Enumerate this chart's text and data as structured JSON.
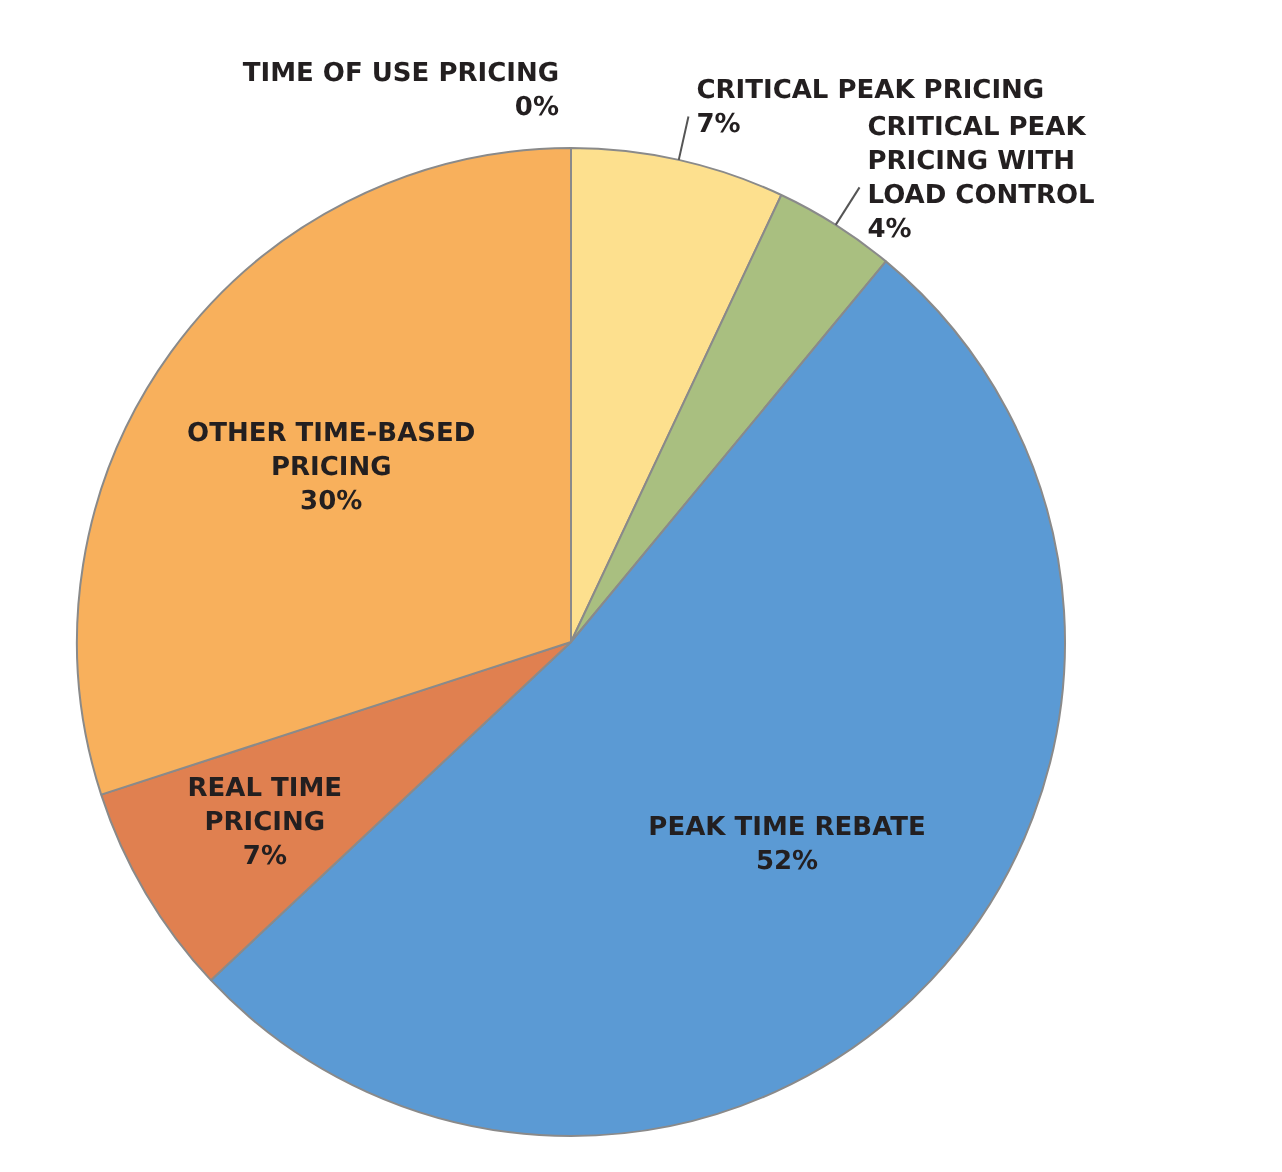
{
  "chart_data": {
    "type": "pie",
    "categories": [
      "TIME OF USE PRICING",
      "CRITICAL PEAK PRICING",
      "CRITICAL PEAK PRICING WITH LOAD CONTROL",
      "PEAK TIME REBATE",
      "REAL TIME PRICING",
      "OTHER TIME-BASED PRICING"
    ],
    "values": [
      0,
      7,
      4,
      52,
      7,
      30
    ],
    "colors": [
      "#6d6e71",
      "#fde08e",
      "#a9bf80",
      "#5b9ad4",
      "#e08050",
      "#f8b05c"
    ],
    "value_labels": [
      "0%",
      "7%",
      "4%",
      "52%",
      "7%",
      "30%"
    ],
    "legend": false
  }
}
